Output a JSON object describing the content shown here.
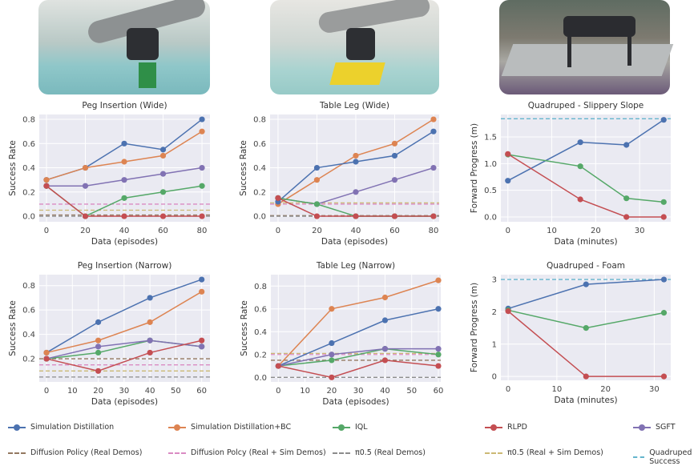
{
  "colors": {
    "sim_distill": "#4c72b0",
    "sim_distill_bc": "#dd8452",
    "iql": "#55a868",
    "rlpd": "#c44e52",
    "sgft": "#8172b3",
    "dp_real": "#937860",
    "dp_real_sim": "#da8bc3",
    "pi_real": "#8c8c8c",
    "pi_real_sim": "#ccb974",
    "quad_success": "#64b5cd",
    "axes_bg": "#eaeaf2"
  },
  "photos": [
    {
      "name": "peg-insertion-robot-photo",
      "scene": "robot arm peg insertion"
    },
    {
      "name": "table-leg-robot-photo",
      "scene": "robot arm table leg"
    },
    {
      "name": "quadruped-robot-photo",
      "scene": "quadruped on slope"
    }
  ],
  "legend": [
    {
      "key": "sim_distill",
      "label": "Simulation Distillation",
      "style": "marker"
    },
    {
      "key": "sim_distill_bc",
      "label": "Simulation Distillation+BC",
      "style": "marker"
    },
    {
      "key": "iql",
      "label": "IQL",
      "style": "marker"
    },
    {
      "key": "rlpd",
      "label": "RLPD",
      "style": "marker"
    },
    {
      "key": "sgft",
      "label": "SGFT",
      "style": "marker"
    },
    {
      "key": "dp_real",
      "label": "Diffusion Policy (Real Demos)",
      "style": "dashed"
    },
    {
      "key": "dp_real_sim",
      "label": "Diffusion Polcy (Real + Sim Demos)",
      "style": "dashed"
    },
    {
      "key": "pi_real",
      "label": "π0.5 (Real Demos)",
      "style": "dashed"
    },
    {
      "key": "pi_real_sim",
      "label": "π0.5 (Real + Sim Demos)",
      "style": "dashed"
    },
    {
      "key": "quad_success",
      "label": "Quadruped Success",
      "style": "dashed"
    }
  ],
  "chart_data": [
    {
      "type": "line",
      "title": "Peg Insertion (Wide)",
      "xlabel": "Data (episodes)",
      "ylabel": "Success Rate",
      "xlim": [
        -3.7,
        84.1
      ],
      "ylim": [
        -0.046,
        0.84
      ],
      "xticks": [
        0,
        20,
        40,
        60,
        80
      ],
      "yticks": [
        "0.0",
        "0.2",
        "0.4",
        "0.6",
        "0.8"
      ],
      "x": [
        0,
        20,
        40,
        60,
        80
      ],
      "series": [
        {
          "key": "sim_distill",
          "values": [
            0.3,
            0.4,
            0.6,
            0.55,
            0.8
          ]
        },
        {
          "key": "sim_distill_bc",
          "values": [
            0.3,
            0.4,
            0.45,
            0.5,
            0.7
          ]
        },
        {
          "key": "sgft",
          "values": [
            0.25,
            0.25,
            0.3,
            0.35,
            0.4
          ]
        },
        {
          "key": "iql",
          "values": [
            0.25,
            0.0,
            0.15,
            0.2,
            0.25
          ]
        },
        {
          "key": "rlpd",
          "values": [
            0.25,
            0.0,
            0.0,
            0.0,
            0.0
          ]
        }
      ],
      "baselines": [
        {
          "key": "dp_real_sim",
          "value": 0.1
        },
        {
          "key": "pi_real_sim",
          "value": 0.05
        },
        {
          "key": "dp_real",
          "value": 0.01
        },
        {
          "key": "pi_real",
          "value": 0.0
        }
      ]
    },
    {
      "type": "line",
      "title": "Table Leg (Wide)",
      "xlabel": "Data (episodes)",
      "ylabel": "Success Rate",
      "xlim": [
        -4.1,
        82.9
      ],
      "ylim": [
        -0.046,
        0.84
      ],
      "xticks": [
        0,
        20,
        40,
        60,
        80
      ],
      "yticks": [
        "0.0",
        "0.2",
        "0.4",
        "0.6",
        "0.8"
      ],
      "x": [
        0,
        20,
        40,
        60,
        80
      ],
      "series": [
        {
          "key": "sim_distill_bc",
          "values": [
            0.1,
            0.3,
            0.5,
            0.6,
            0.8
          ]
        },
        {
          "key": "sim_distill",
          "values": [
            0.12,
            0.4,
            0.45,
            0.5,
            0.7
          ]
        },
        {
          "key": "sgft",
          "values": [
            0.15,
            0.1,
            0.2,
            0.3,
            0.4
          ]
        },
        {
          "key": "iql",
          "values": [
            0.15,
            0.1,
            0.0,
            0.0,
            0.0
          ]
        },
        {
          "key": "rlpd",
          "values": [
            0.15,
            0.0,
            0.0,
            0.0,
            0.0
          ]
        }
      ],
      "baselines": [
        {
          "key": "pi_real_sim",
          "value": 0.11
        },
        {
          "key": "dp_real_sim",
          "value": 0.1
        },
        {
          "key": "dp_real",
          "value": 0.005
        },
        {
          "key": "pi_real",
          "value": 0.0
        }
      ]
    },
    {
      "type": "line",
      "title": "Quadruped - Slippery Slope",
      "xlabel": "Data (minutes)",
      "ylabel": "Forward Progress (m)",
      "xlim": [
        -1.6,
        37.1
      ],
      "ylim": [
        -0.09,
        1.92
      ],
      "xticks": [
        0,
        10,
        20,
        30
      ],
      "yticks": [
        "0.0",
        "0.5",
        "1.0",
        "1.5"
      ],
      "x": [
        0,
        16.5,
        27,
        35.5
      ],
      "series": [
        {
          "key": "sim_distill",
          "values": [
            0.68,
            1.4,
            1.35,
            1.82
          ]
        },
        {
          "key": "iql",
          "values": [
            1.17,
            0.95,
            0.35,
            0.28
          ]
        },
        {
          "key": "rlpd",
          "values": [
            1.18,
            0.33,
            0.0,
            0.0
          ]
        }
      ],
      "baselines": [
        {
          "key": "quad_success",
          "value": 1.84
        }
      ]
    },
    {
      "type": "line",
      "title": "Peg Insertion (Narrow)",
      "xlabel": "Data (episodes)",
      "ylabel": "Success Rate",
      "xlim": [
        -2.8,
        63.2
      ],
      "ylim": [
        0.01,
        0.89
      ],
      "xticks": [
        0,
        10,
        20,
        30,
        40,
        50,
        60
      ],
      "yticks": [
        "0.2",
        "0.4",
        "0.6",
        "0.8"
      ],
      "x": [
        0,
        20,
        40,
        60
      ],
      "series": [
        {
          "key": "sim_distill",
          "values": [
            0.25,
            0.5,
            0.7,
            0.85
          ]
        },
        {
          "key": "sim_distill_bc",
          "values": [
            0.25,
            0.35,
            0.5,
            0.75
          ]
        },
        {
          "key": "iql",
          "values": [
            0.2,
            0.25,
            0.35,
            0.3
          ]
        },
        {
          "key": "sgft",
          "values": [
            0.2,
            0.3,
            0.35,
            0.3
          ]
        },
        {
          "key": "rlpd",
          "values": [
            0.2,
            0.1,
            0.25,
            0.35
          ]
        }
      ],
      "baselines": [
        {
          "key": "dp_real",
          "value": 0.2
        },
        {
          "key": "dp_real_sim",
          "value": 0.15
        },
        {
          "key": "pi_real_sim",
          "value": 0.1
        },
        {
          "key": "pi_real",
          "value": 0.05
        }
      ]
    },
    {
      "type": "line",
      "title": "Table Leg (Narrow)",
      "xlabel": "Data (episodes)",
      "ylabel": "Success Rate",
      "xlim": [
        -2.8,
        60.9
      ],
      "ylim": [
        -0.04,
        0.9
      ],
      "xticks": [
        0,
        10,
        20,
        30,
        40,
        50,
        60
      ],
      "yticks": [
        "0.0",
        "0.2",
        "0.4",
        "0.6",
        "0.8"
      ],
      "x": [
        0,
        20,
        40,
        60
      ],
      "series": [
        {
          "key": "sim_distill_bc",
          "values": [
            0.1,
            0.6,
            0.7,
            0.85
          ]
        },
        {
          "key": "sim_distill",
          "values": [
            0.1,
            0.3,
            0.5,
            0.6
          ]
        },
        {
          "key": "iql",
          "values": [
            0.1,
            0.15,
            0.25,
            0.2
          ]
        },
        {
          "key": "sgft",
          "values": [
            0.1,
            0.2,
            0.25,
            0.25
          ]
        },
        {
          "key": "rlpd",
          "values": [
            0.1,
            0.0,
            0.15,
            0.1
          ]
        }
      ],
      "baselines": [
        {
          "key": "pi_real_sim",
          "value": 0.21
        },
        {
          "key": "dp_real_sim",
          "value": 0.2
        },
        {
          "key": "dp_real",
          "value": 0.15
        },
        {
          "key": "pi_real",
          "value": 0.0
        }
      ]
    },
    {
      "type": "line",
      "title": "Quadruped - Foam",
      "xlabel": "Data (minutes)",
      "ylabel": "Forward Progress (m)",
      "xlim": [
        -1.5,
        33.4
      ],
      "ylim": [
        -0.12,
        3.15
      ],
      "xticks": [
        0,
        10,
        20,
        30
      ],
      "yticks": [
        "0",
        "1",
        "2",
        "3"
      ],
      "x": [
        0,
        16,
        32
      ],
      "series": [
        {
          "key": "sim_distill",
          "values": [
            2.1,
            2.85,
            3.0
          ]
        },
        {
          "key": "iql",
          "values": [
            2.05,
            1.5,
            1.97
          ]
        },
        {
          "key": "rlpd",
          "values": [
            2.02,
            0.0,
            0.0
          ]
        }
      ],
      "baselines": [
        {
          "key": "quad_success",
          "value": 3.0
        }
      ]
    }
  ]
}
